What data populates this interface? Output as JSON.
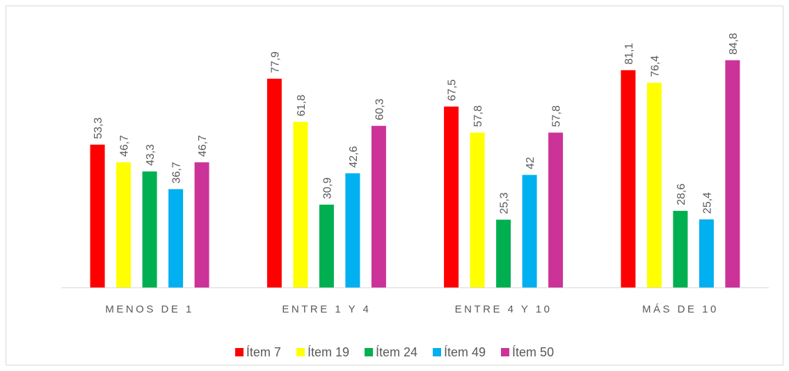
{
  "chart_data": {
    "type": "bar",
    "categories": [
      "MENOS DE 1",
      "ENTRE 1 Y 4",
      "ENTRE 4 Y 10",
      "MÁS DE 10"
    ],
    "series": [
      {
        "name": "Ítem 7",
        "color": "#ff0000",
        "values": [
          "53,3",
          "77,9",
          "67,5",
          "81,1"
        ]
      },
      {
        "name": "Ítem 19",
        "color": "#ffff00",
        "values": [
          "46,7",
          "61,8",
          "57,8",
          "76,4"
        ]
      },
      {
        "name": "Ítem 24",
        "color": "#00b050",
        "values": [
          "43,3",
          "30,9",
          "25,3",
          "28,6"
        ]
      },
      {
        "name": "Ítem 49",
        "color": "#00b0f0",
        "values": [
          "36,7",
          "42,6",
          "42",
          "25,4"
        ]
      },
      {
        "name": "Ítem 50",
        "color": "#cc3399",
        "values": [
          "46,7",
          "60,3",
          "57,8",
          "84,8"
        ]
      }
    ],
    "ylim": [
      0,
      100
    ],
    "grid": false,
    "legend_position": "bottom",
    "data_labels": true
  }
}
